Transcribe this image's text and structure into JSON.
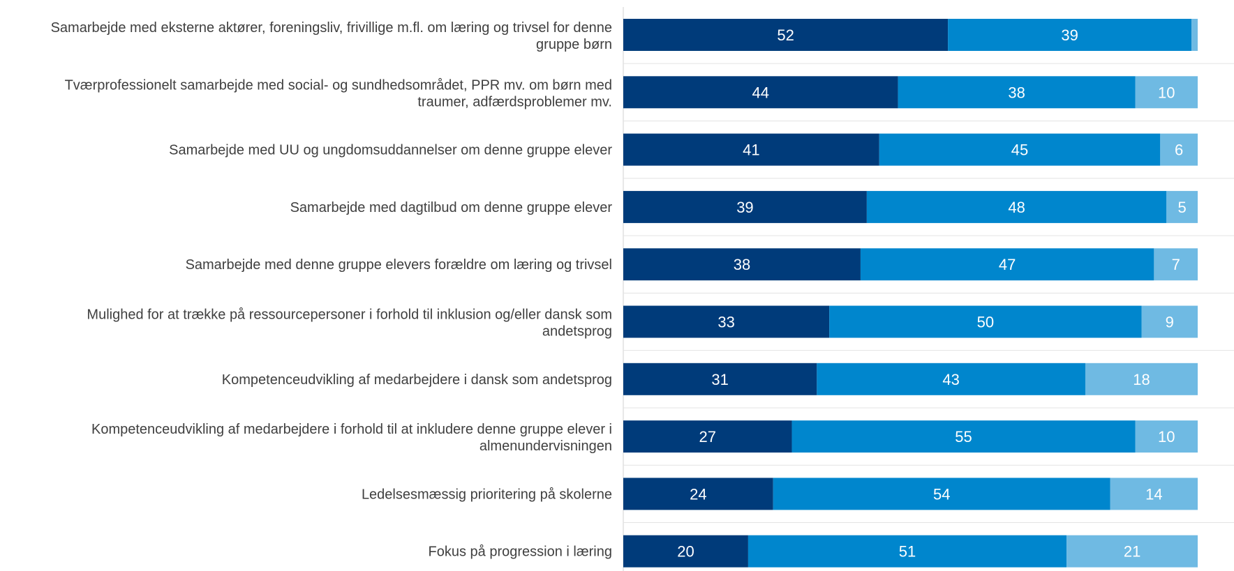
{
  "colors": {
    "series1": "#003b7a",
    "series2": "#0086cd",
    "series3": "#6fbae3",
    "axis": "#d0d0d0",
    "label_text": "#3f3f3f",
    "value_text": "#ffffff"
  },
  "chart_data": {
    "type": "bar",
    "orientation": "horizontal",
    "stacked": true,
    "categories": [
      [
        "Samarbejde med eksterne aktører, foreningsliv, frivillige m.fl. om læring og trivsel for denne",
        "gruppe børn"
      ],
      [
        "Tværprofessionelt samarbejde med social- og sundhedsområdet, PPR mv. om børn med",
        "traumer, adfærdsproblemer mv."
      ],
      [
        "Samarbejde med UU og ungdomsuddannelser om denne gruppe elever"
      ],
      [
        "Samarbejde med dagtilbud om denne gruppe elever"
      ],
      [
        "Samarbejde med denne gruppe elevers forældre om læring og trivsel"
      ],
      [
        "Mulighed for at trække på ressourcepersoner i forhold til inklusion og/eller dansk som",
        "andetsprog"
      ],
      [
        "Kompetenceudvikling af medarbejdere i dansk som andetsprog"
      ],
      [
        "Kompetenceudvikling af medarbejdere i forhold til at inkludere denne gruppe elever i",
        "almenundervisningen"
      ],
      [
        "Ledelsesmæssig prioritering på skolerne"
      ],
      [
        "Fokus på progression i læring"
      ]
    ],
    "series": [
      {
        "values": [
          52,
          44,
          41,
          39,
          38,
          33,
          31,
          27,
          24,
          20
        ]
      },
      {
        "values": [
          39,
          38,
          45,
          48,
          47,
          50,
          43,
          55,
          54,
          51
        ]
      },
      {
        "values": [
          1,
          10,
          6,
          5,
          7,
          9,
          18,
          10,
          14,
          21
        ]
      }
    ],
    "data_labels": [
      [
        "52",
        "44",
        "41",
        "39",
        "38",
        "33",
        "31",
        "27",
        "24",
        "20"
      ],
      [
        "39",
        "38",
        "45",
        "48",
        "47",
        "50",
        "43",
        "55",
        "54",
        "51"
      ],
      [
        "",
        "10",
        "6",
        "5",
        "7",
        "9",
        "18",
        "10",
        "14",
        "21"
      ]
    ],
    "xlim": [
      0,
      92
    ],
    "title": "",
    "xlabel": "",
    "ylabel": "",
    "grid": false,
    "legend": "none"
  }
}
